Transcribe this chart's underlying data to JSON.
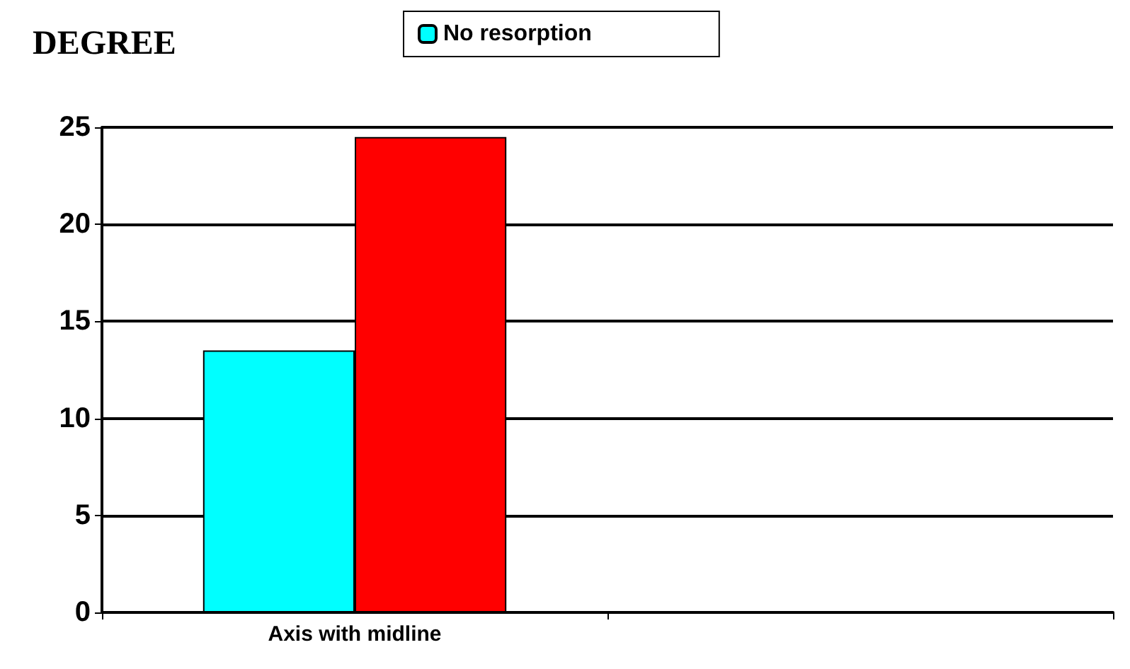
{
  "chart_data": {
    "type": "bar",
    "title": "DEGREE",
    "categories": [
      "Axis with midline",
      null
    ],
    "series": [
      {
        "name": "No resorption",
        "color": "#00ffff",
        "values": [
          13.5,
          null
        ]
      },
      {
        "color": "#ff0000",
        "values": [
          24.5,
          null
        ]
      }
    ],
    "ylim": [
      0,
      25
    ],
    "yticks": [
      0,
      5,
      10,
      15,
      20,
      25
    ],
    "grid": "y",
    "legend": "top"
  }
}
